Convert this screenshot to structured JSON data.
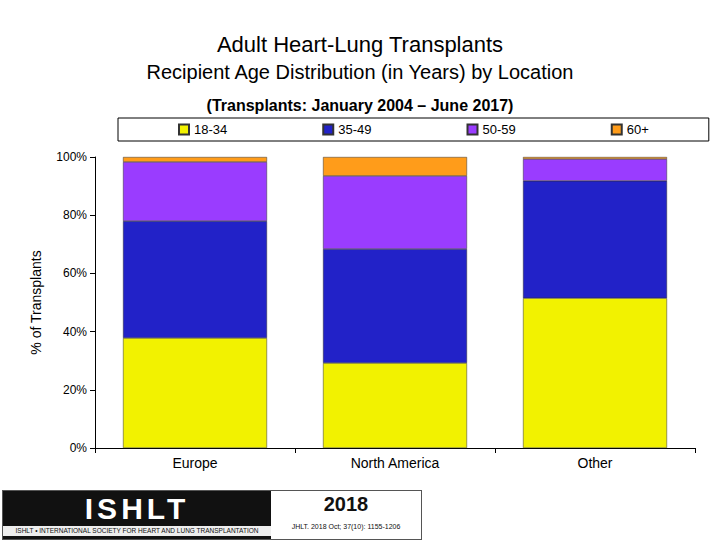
{
  "chart_data": {
    "type": "bar",
    "title": [
      "Adult Heart-Lung Transplants",
      "Recipient Age Distribution (in Years) by Location"
    ],
    "subtitle": "(Transplants: January 2004 – June 2017)",
    "y_label": "% of Transplants",
    "categories": [
      "Europe",
      "North America",
      "Other"
    ],
    "series": [
      {
        "name": "18-34",
        "color": "#f2f200",
        "values": [
          37.8,
          29.2,
          51.5
        ]
      },
      {
        "name": "35-49",
        "color": "#2222c8",
        "values": [
          40.2,
          39.2,
          40.3
        ]
      },
      {
        "name": "50-59",
        "color": "#9a3cff",
        "values": [
          20.3,
          25.1,
          7.5
        ]
      },
      {
        "name": "60+",
        "color": "#ff9c1a",
        "values": [
          1.7,
          6.5,
          0.7
        ]
      }
    ],
    "stacked": true,
    "ylim": [
      0,
      100
    ],
    "yticks": [
      {
        "value": 0,
        "label": "0%"
      },
      {
        "value": 20,
        "label": "20%"
      },
      {
        "value": 40,
        "label": "40%"
      },
      {
        "value": 60,
        "label": "60%"
      },
      {
        "value": 80,
        "label": "80%"
      },
      {
        "value": 100,
        "label": "100%"
      }
    ],
    "grid": false,
    "legend": "top",
    "footer": {
      "logo": "ISHLT",
      "organization": "ISHLT • INTERNATIONAL SOCIETY FOR HEART AND LUNG TRANSPLANTATION",
      "year": "2018",
      "citation": "JHLT. 2018 Oct; 37(10): 1155-1206"
    }
  }
}
